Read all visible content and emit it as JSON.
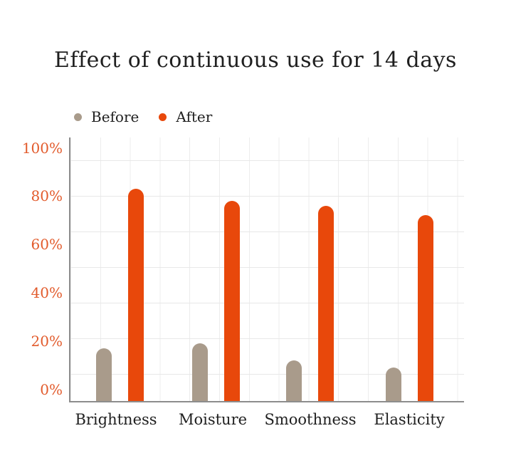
{
  "chart_data": {
    "type": "bar",
    "title": "Effect of continuous use for 14 days",
    "categories": [
      "Brightness",
      "Moisture",
      "Smoothness",
      "Elasticity"
    ],
    "series": [
      {
        "name": "Before",
        "color": "#a99b8b",
        "values": [
          17,
          19,
          12,
          9
        ]
      },
      {
        "name": "After",
        "color": "#e8480b",
        "values": [
          83,
          78,
          76,
          72
        ]
      }
    ],
    "unit": "%",
    "yticks": [
      100,
      80,
      60,
      40,
      20,
      0
    ],
    "ytick_labels": [
      "100%",
      "80%",
      "60%",
      "40%",
      "20%",
      "0%"
    ],
    "ylim": [
      0,
      100
    ],
    "grid": true,
    "legend_position": "top-left",
    "colors": {
      "tick_label": "#e25b2c",
      "text": "#1f1f1f",
      "gridline": "#e8e8e8",
      "axis_line": "#8d8d8d",
      "background": "#ffffff"
    }
  }
}
